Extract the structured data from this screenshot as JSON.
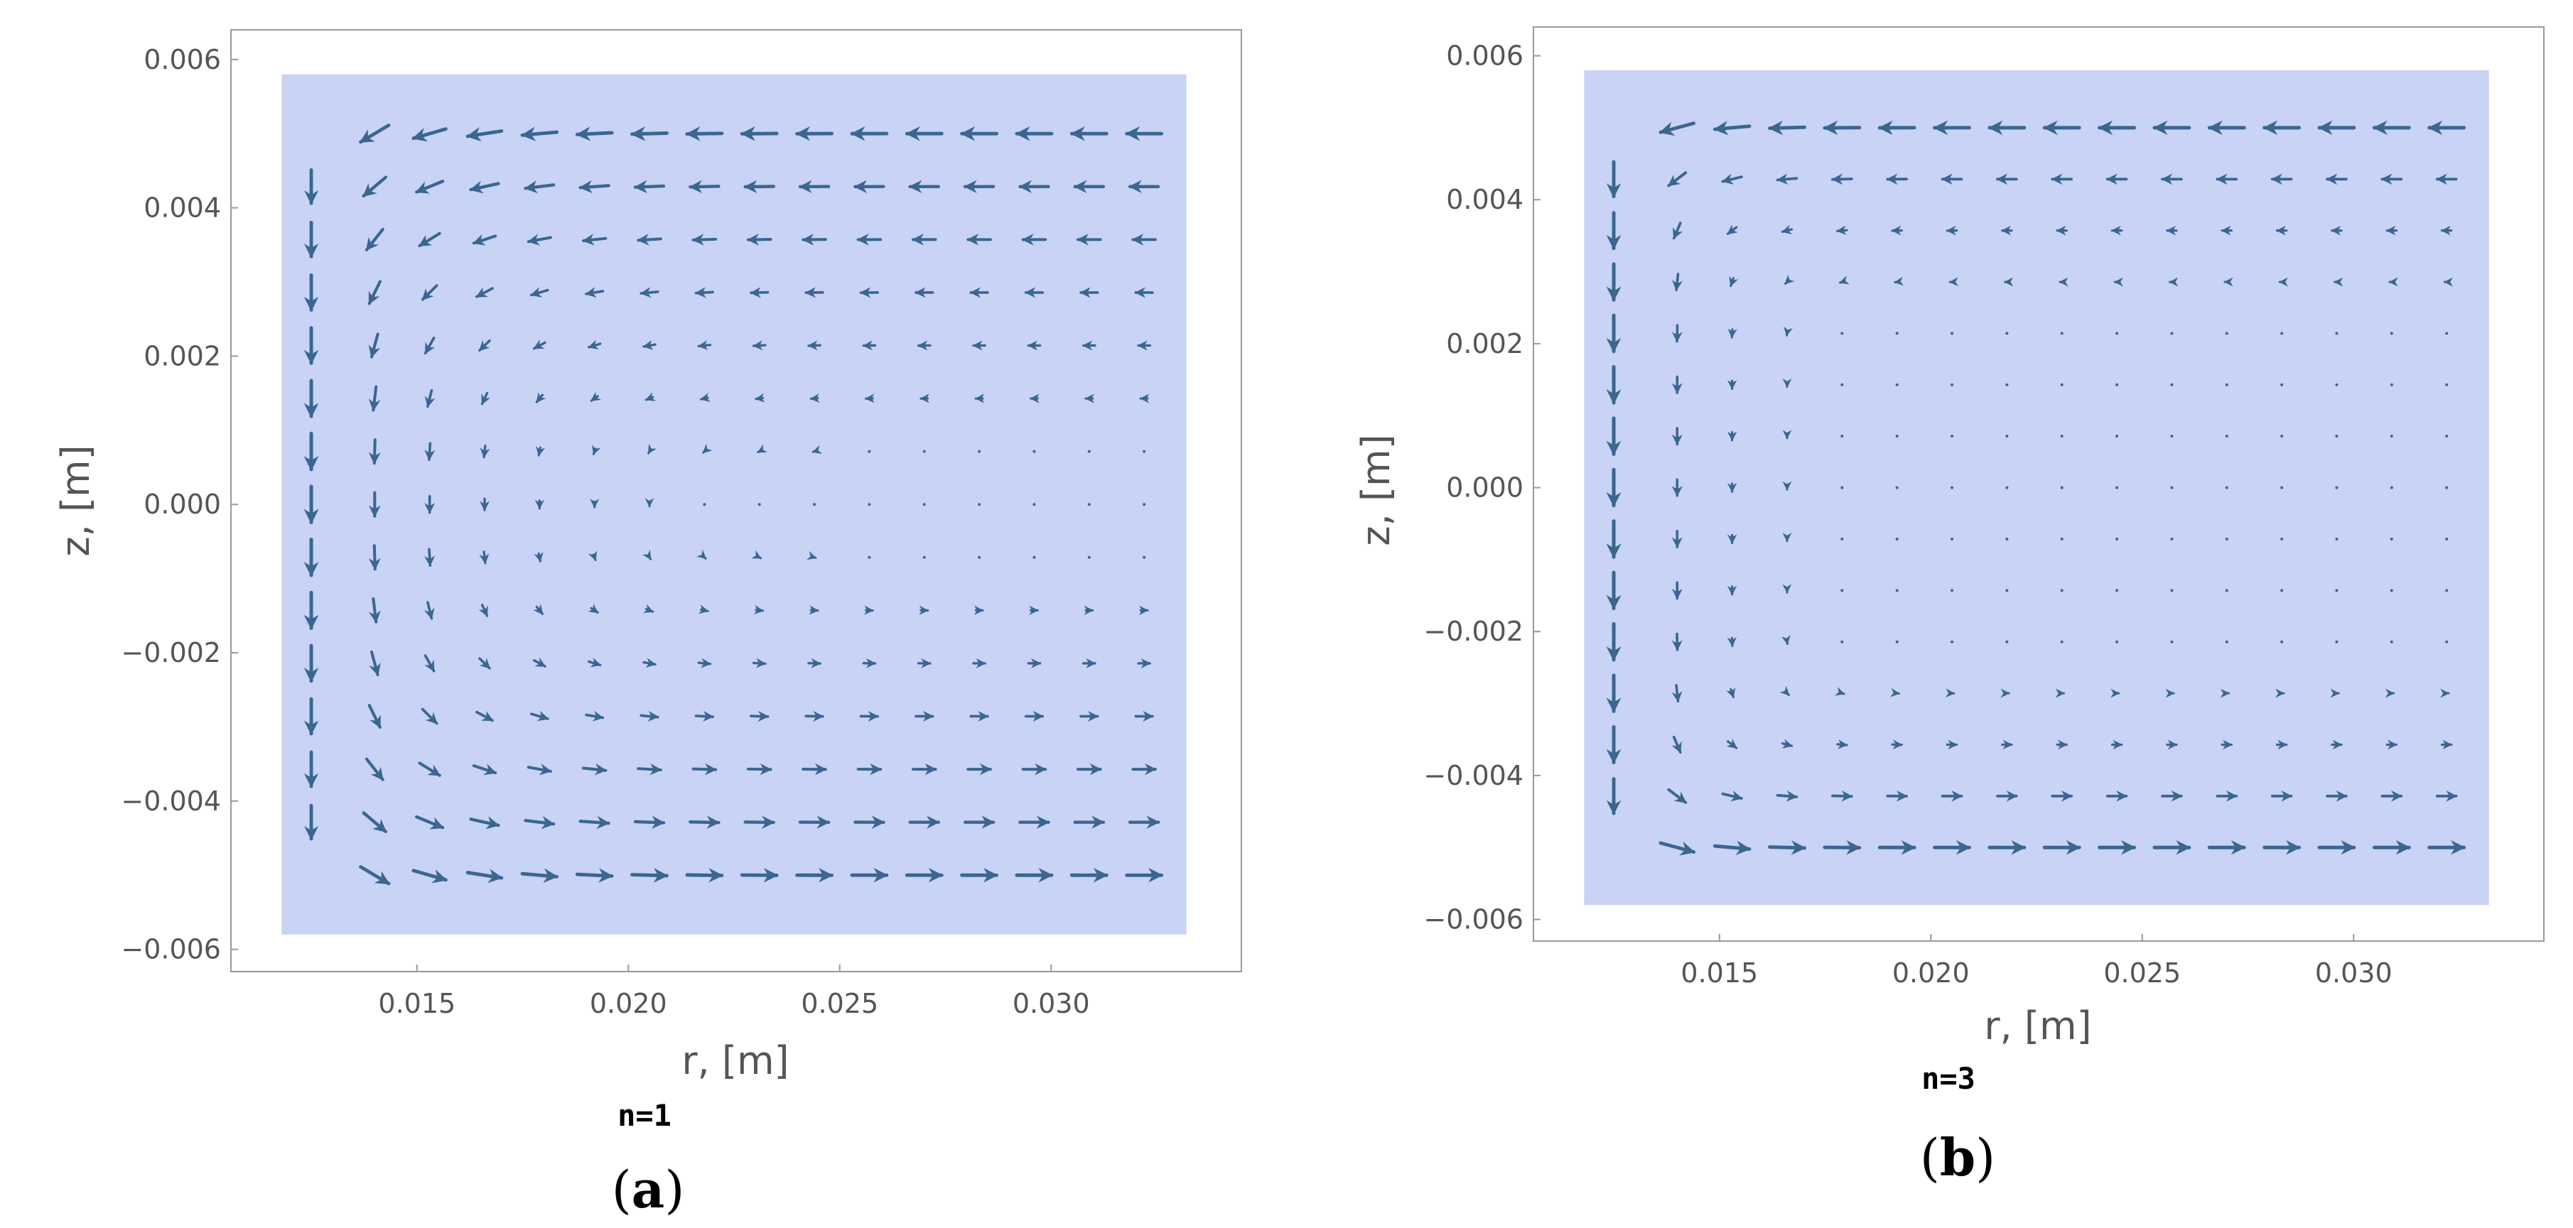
{
  "figure": {
    "panels": [
      {
        "id": "a",
        "caption_open": "(",
        "caption_letter": "a",
        "caption_close": ")",
        "n_label": "n=1"
      },
      {
        "id": "b",
        "caption_open": "(",
        "caption_letter": "b",
        "caption_close": ")",
        "n_label": "n=3"
      }
    ],
    "colors": {
      "arrow": "#3a6690",
      "region_fill": "#c8d3f5",
      "frame": "#999999",
      "text": "#555555"
    }
  },
  "chart_data": [
    {
      "type": "vector_field",
      "panel": "a",
      "xlabel": "r, [m]",
      "ylabel": "z, [m]",
      "xlim": [
        0.0106,
        0.0345
      ],
      "ylim": [
        -0.0063,
        0.0064
      ],
      "x_ticks": [
        0.015,
        0.02,
        0.025,
        0.03
      ],
      "x_tick_labels": [
        "0.015",
        "0.020",
        "0.025",
        "0.030"
      ],
      "y_ticks": [
        -0.006,
        -0.004,
        -0.002,
        0.0,
        0.002,
        0.004,
        0.006
      ],
      "y_tick_labels": [
        "−0.006",
        "−0.004",
        "−0.002",
        "0.000",
        "0.002",
        "0.004",
        "0.006"
      ],
      "region": {
        "r": [
          0.0118,
          0.0332
        ],
        "z": [
          -0.0058,
          0.0058
        ]
      },
      "grid": false,
      "field": "Recirculating vortex: flow downward along inner wall r≈0.0125 m, outward (+r) along bottom, inward (−r) along top; speed decays toward the core near r≈0.018–0.020 m.",
      "vortex": {
        "rc": 0.0125,
        "L": 0.0023,
        "vmax_arrow_len_r": 0.00085,
        "nz_power": 1
      }
    },
    {
      "type": "vector_field",
      "panel": "b",
      "xlabel": "r, [m]",
      "ylabel": "z, [m]",
      "xlim": [
        0.0106,
        0.0345
      ],
      "ylim": [
        -0.0063,
        0.0064
      ],
      "x_ticks": [
        0.015,
        0.02,
        0.025,
        0.03
      ],
      "x_tick_labels": [
        "0.015",
        "0.020",
        "0.025",
        "0.030"
      ],
      "y_ticks": [
        -0.006,
        -0.004,
        -0.002,
        0.0,
        0.002,
        0.004,
        0.006
      ],
      "y_tick_labels": [
        "−0.006",
        "−0.004",
        "−0.002",
        "0.000",
        "0.002",
        "0.004",
        "0.006"
      ],
      "region": {
        "r": [
          0.0118,
          0.0332
        ],
        "z": [
          -0.0058,
          0.0058
        ]
      },
      "grid": false,
      "field": "Recirculating flow confined to thin layers: strong downward flow at r≈0.0125 m, outward along bottom, inward along top; nearly stagnant interior.",
      "vortex": {
        "rc": 0.0125,
        "L": 0.0012,
        "vmax_arrow_len_r": 0.00085,
        "nz_power": 3
      }
    }
  ]
}
